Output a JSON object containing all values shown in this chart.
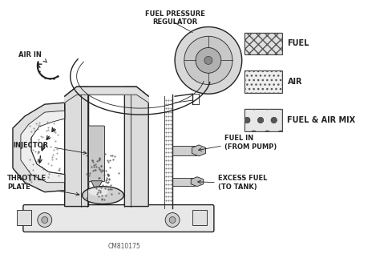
{
  "bg_color": "#ffffff",
  "labels": {
    "air_in": "AIR IN",
    "fuel_pressure": "FUEL PRESSURE\nREGULATOR",
    "injector": "INJECTOR",
    "throttle_plate": "THROTTLE\nPLATE",
    "fuel_in": "FUEL IN\n(FROM PUMP)",
    "excess_fuel": "EXCESS FUEL\n(TO TANK)",
    "legend_fuel": "FUEL",
    "legend_air": "AIR",
    "legend_mix": "FUEL & AIR MIX",
    "part_number": "CM810175"
  },
  "line_color": "#222222",
  "font_size_label": 6.0,
  "font_size_legend": 7.0,
  "font_size_partnum": 5.5,
  "fig_w": 4.74,
  "fig_h": 3.22,
  "dpi": 100
}
